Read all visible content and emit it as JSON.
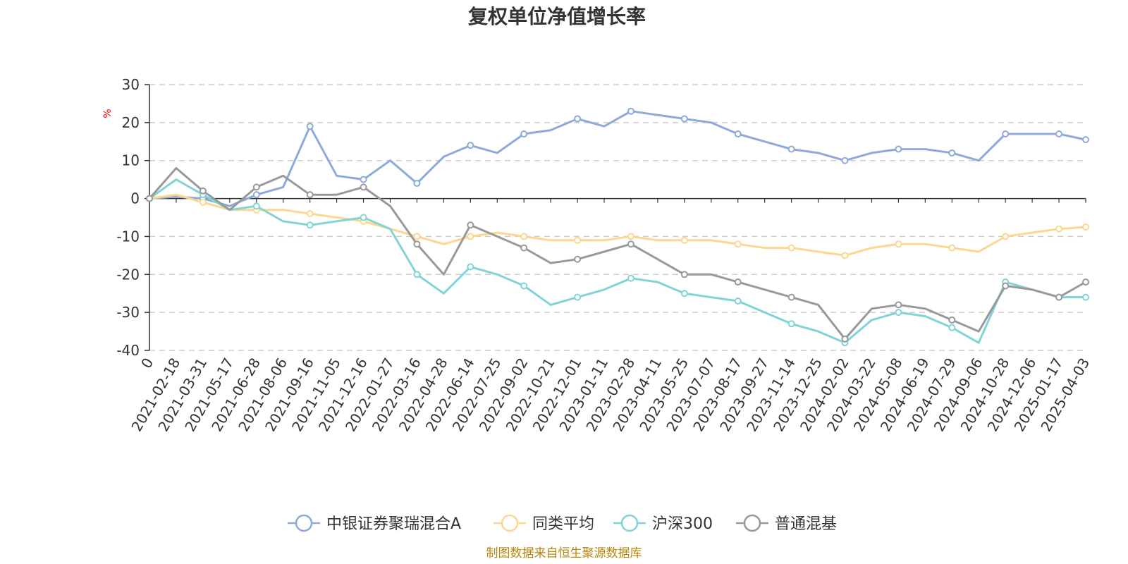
{
  "chart_data": {
    "type": "line",
    "title": "复权单位净值增长率",
    "ylabel": "%",
    "xlabel": "",
    "ylim": [
      -40,
      30
    ],
    "yticks": [
      30,
      20,
      10,
      0,
      -10,
      -20,
      -30,
      -40
    ],
    "grid": true,
    "legend_position": "bottom",
    "source": "制图数据来自恒生聚源数据库",
    "categories": [
      "0",
      "2021-02-18",
      "2021-03-31",
      "2021-05-17",
      "2021-06-28",
      "2021-08-06",
      "2021-09-16",
      "2021-11-05",
      "2021-12-16",
      "2022-01-27",
      "2022-03-16",
      "2022-04-28",
      "2022-06-14",
      "2022-07-25",
      "2022-09-02",
      "2022-10-21",
      "2022-12-01",
      "2023-01-11",
      "2023-02-28",
      "2023-04-11",
      "2023-05-25",
      "2023-07-07",
      "2023-08-17",
      "2023-09-27",
      "2023-11-14",
      "2023-12-25",
      "2024-02-02",
      "2024-03-22",
      "2024-05-08",
      "2024-06-19",
      "2024-07-29",
      "2024-09-06",
      "2024-10-28",
      "2024-12-06",
      "2025-01-17",
      "2025-04-03"
    ],
    "series": [
      {
        "name": "中银证券聚瑞混合A",
        "color": "#8eaadb",
        "values": [
          0,
          0.5,
          0,
          -2,
          1,
          3,
          19,
          6,
          5,
          10,
          4,
          11,
          14,
          12,
          17,
          18,
          21,
          19,
          23,
          22,
          21,
          20,
          17,
          15,
          13,
          12,
          10,
          12,
          13,
          13,
          12,
          10,
          17,
          17,
          17,
          15.5
        ]
      },
      {
        "name": "同类平均",
        "color": "#fdd68f",
        "values": [
          0,
          1,
          -1,
          -3,
          -3,
          -3,
          -4,
          -5,
          -6,
          -8,
          -10,
          -12,
          -10,
          -9,
          -10,
          -11,
          -11,
          -11,
          -10,
          -11,
          -11,
          -11,
          -12,
          -13,
          -13,
          -14,
          -15,
          -13,
          -12,
          -12,
          -13,
          -14,
          -10,
          -9,
          -8,
          -7.5
        ]
      },
      {
        "name": "沪深300",
        "color": "#80d4d8",
        "values": [
          0,
          5,
          1,
          -3,
          -2,
          -6,
          -7,
          -6,
          -5,
          -8,
          -20,
          -25,
          -18,
          -20,
          -23,
          -28,
          -26,
          -24,
          -21,
          -22,
          -25,
          -26,
          -27,
          -30,
          -33,
          -35,
          -38,
          -32,
          -30,
          -31,
          -34,
          -38,
          -22,
          -24,
          -26,
          -26
        ]
      },
      {
        "name": "普通混基",
        "color": "#999999",
        "values": [
          0,
          8,
          2,
          -3,
          3,
          6,
          1,
          1,
          3,
          -2,
          -12,
          -20,
          -7,
          -10,
          -13,
          -17,
          -16,
          -14,
          -12,
          -16,
          -20,
          -20,
          -22,
          -24,
          -26,
          -28,
          -37,
          -29,
          -28,
          -29,
          -32,
          -35,
          -23,
          -24,
          -26,
          -22
        ]
      }
    ]
  }
}
